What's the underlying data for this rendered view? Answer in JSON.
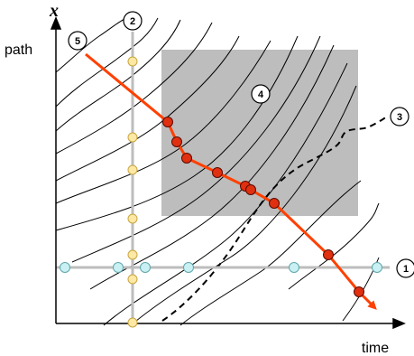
{
  "axes": {
    "y_symbol": "x",
    "y_label": "path",
    "x_label": "time"
  },
  "markers": [
    "1",
    "2",
    "3",
    "4",
    "5"
  ],
  "colors": {
    "trajectory": "#ff4000",
    "shaded_region": "#bdbdbd",
    "grid_line": "#bdbdbd",
    "horizontal_dot": "#c9f0f2",
    "vertical_dot": "#fde8a6",
    "path_dot": "#e0300f"
  }
}
